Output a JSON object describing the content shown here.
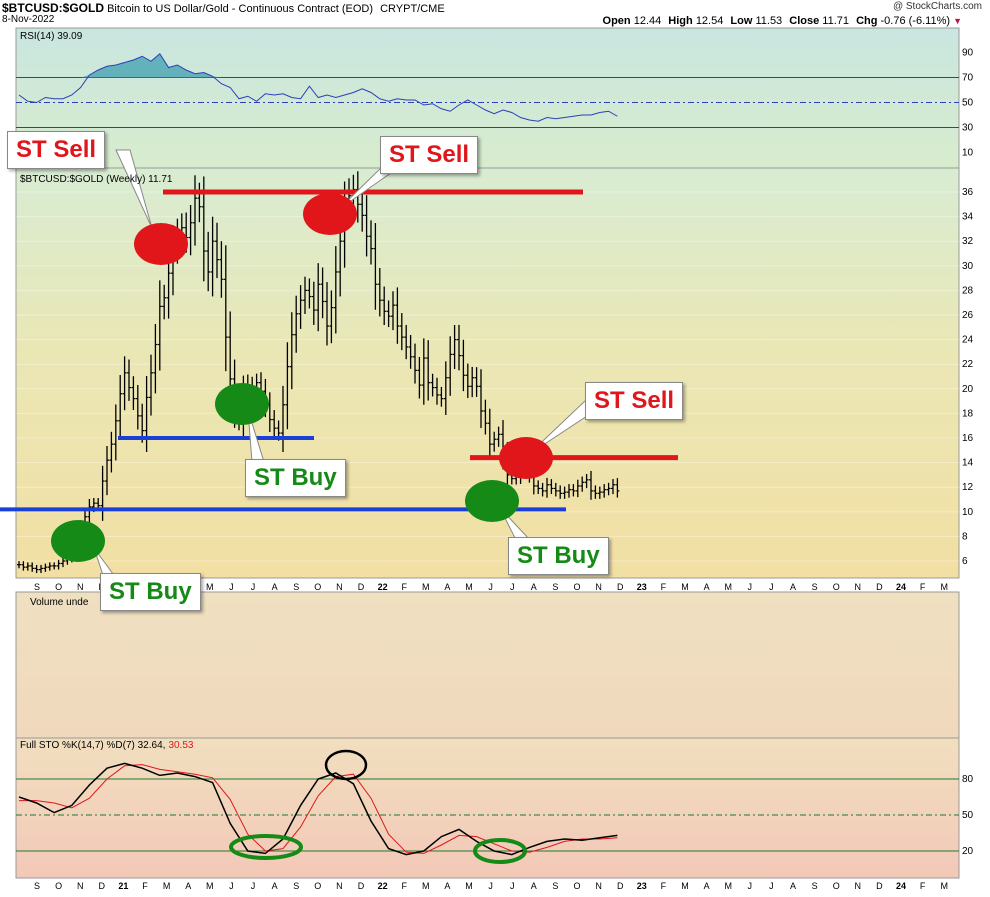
{
  "header": {
    "symbol": "$BTCUSD:$GOLD",
    "description": "Bitcoin to US Dollar/Gold - Continuous Contract (EOD)",
    "exchange": "CRYPT/CME",
    "date": "8-Nov-2022",
    "watermark": "@ StockCharts.com",
    "ohlc": {
      "open_label": "Open",
      "open": "12.44",
      "high_label": "High",
      "high": "12.54",
      "low_label": "Low",
      "low": "11.53",
      "close_label": "Close",
      "close": "11.71",
      "chg_label": "Chg",
      "chg": "-0.76 (-6.11%)"
    }
  },
  "colors": {
    "sell": "#e0161b",
    "buy": "#158a16",
    "support": "#1a3fd6",
    "resistance": "#e0161b",
    "price": "#000000",
    "rsi": "#2b3fb8",
    "sto_k": "#000000",
    "sto_d": "#e0161b"
  },
  "chart_data": [
    {
      "type": "line",
      "panel": "rsi",
      "label": "RSI(14) 39.09",
      "y_ticks": [
        "90",
        "70",
        "50",
        "30",
        "10"
      ],
      "ylim": [
        0,
        100
      ],
      "reference_lines": [
        70,
        50,
        30
      ],
      "x": [
        0,
        2,
        4,
        6,
        8,
        10,
        12,
        14,
        16,
        18,
        20,
        22,
        24,
        26,
        28,
        30,
        32,
        34,
        36,
        38,
        40,
        42,
        44,
        46,
        48,
        50,
        52,
        54,
        56,
        58,
        60,
        62,
        64,
        66,
        68,
        70,
        72,
        74,
        76,
        78,
        80,
        82,
        84,
        86,
        88,
        90,
        92,
        94,
        96,
        98,
        100,
        102,
        104,
        106,
        108,
        110,
        112,
        114,
        116,
        118,
        120,
        122,
        124,
        126,
        128,
        130,
        132,
        134,
        136
      ],
      "values": [
        56,
        51,
        50,
        54,
        53,
        53,
        56,
        62,
        72,
        76,
        79,
        80,
        82,
        84,
        87,
        83,
        89,
        78,
        80,
        76,
        73,
        74,
        71,
        65,
        62,
        53,
        55,
        51,
        57,
        56,
        57,
        54,
        53,
        63,
        54,
        56,
        54,
        56,
        58,
        61,
        58,
        53,
        51,
        53,
        52,
        52,
        48,
        49,
        45,
        43,
        48,
        52,
        48,
        44,
        41,
        44,
        42,
        38,
        36,
        35,
        38,
        37,
        38,
        39,
        40,
        40,
        42,
        43,
        39
      ]
    },
    {
      "type": "candlestick",
      "panel": "price",
      "label": "$BTCUSD:$GOLD (Weekly) 11.71",
      "y_ticks": [
        "36",
        "34",
        "32",
        "30",
        "28",
        "26",
        "24",
        "22",
        "20",
        "18",
        "16",
        "14",
        "12",
        "10",
        "8",
        "6"
      ],
      "ylim": [
        5,
        38
      ],
      "x_ticks": [
        "S",
        "O",
        "N",
        "D",
        "21",
        "F",
        "M",
        "A",
        "M",
        "J",
        "J",
        "A",
        "S",
        "O",
        "N",
        "D",
        "22",
        "F",
        "M",
        "A",
        "M",
        "J",
        "J",
        "A",
        "S",
        "O",
        "N",
        "D",
        "23",
        "F",
        "M",
        "A",
        "M",
        "J",
        "J",
        "A",
        "S",
        "O",
        "N",
        "D",
        "24",
        "F",
        "M"
      ],
      "x": [
        0,
        1,
        2,
        3,
        4,
        5,
        6,
        7,
        8,
        9,
        10,
        11,
        12,
        13,
        14,
        15,
        16,
        17,
        18,
        19,
        20,
        21,
        22,
        23,
        24,
        25,
        26,
        27,
        28,
        29,
        30,
        31,
        32,
        33,
        34,
        35,
        36,
        37,
        38,
        39,
        40,
        41,
        42,
        43,
        44,
        45,
        46,
        47,
        48,
        49,
        50,
        51,
        52,
        53,
        54,
        55,
        56,
        57,
        58,
        59,
        60,
        61,
        62,
        63,
        64,
        65,
        66,
        67,
        68,
        69,
        70,
        71,
        72,
        73,
        74,
        75,
        76,
        77,
        78,
        79,
        80,
        81,
        82,
        83,
        84,
        85,
        86,
        87,
        88,
        89,
        90,
        91,
        92,
        93,
        94,
        95,
        96,
        97,
        98,
        99,
        100,
        101,
        102,
        103,
        104,
        105,
        106,
        107,
        108,
        109,
        110,
        111,
        112,
        113,
        114,
        115,
        116,
        117,
        118,
        119,
        120,
        121,
        122,
        123,
        124,
        125,
        126,
        127,
        128,
        129,
        130,
        131,
        132,
        133,
        134,
        135,
        136
      ],
      "close": [
        5.7,
        5.5,
        5.6,
        5.4,
        5.3,
        5.4,
        5.5,
        5.6,
        5.6,
        5.8,
        6,
        6.2,
        6.5,
        7.2,
        8.5,
        9.6,
        10.4,
        10.7,
        10.5,
        12.5,
        14.2,
        15.5,
        17.4,
        19.6,
        21.3,
        20.1,
        19.2,
        17.8,
        16.6,
        19.3,
        21.3,
        23.6,
        26.7,
        27.4,
        29.4,
        31.5,
        32.5,
        33.1,
        32.3,
        33.5,
        35.5,
        34.8,
        31.2,
        29.5,
        32,
        30.5,
        28.9,
        24.2,
        20.8,
        18.4,
        17.5,
        19.6,
        20.3,
        20.1,
        20.5,
        19.8,
        18.7,
        17.5,
        16.8,
        16.4,
        18.7,
        21.8,
        24.4,
        26.1,
        27.2,
        28,
        27.5,
        26.4,
        28.5,
        27.1,
        25.1,
        26.6,
        29.5,
        32,
        34.7,
        35.7,
        36.2,
        35,
        34.1,
        32.4,
        31.4,
        28.5,
        27.2,
        26.3,
        25.9,
        26.8,
        25.1,
        24.2,
        23.4,
        22.6,
        21.5,
        20.3,
        22.5,
        20.5,
        20.1,
        19.5,
        19.2,
        20.9,
        22.8,
        24,
        22.7,
        21.1,
        20.2,
        20.9,
        20.2,
        18.2,
        17.2,
        15.5,
        15.9,
        16.3,
        14.6,
        13,
        12.7,
        12.9,
        13.5,
        13.3,
        12.9,
        12.1,
        11.9,
        11.7,
        12.2,
        11.9,
        11.7,
        11.5,
        11.6,
        11.8,
        11.7,
        12.1,
        12.4,
        12.6,
        11.7,
        11.5,
        11.6,
        11.8,
        11.9,
        12.2,
        11.7
      ],
      "support_lines": [
        {
          "level": 16,
          "from": "D",
          "to": "S"
        },
        {
          "level": 10.2,
          "from": "S",
          "to": "J"
        }
      ],
      "resistance_lines": [
        {
          "level": 36,
          "from": "M",
          "to": "J"
        },
        {
          "level": 14.4,
          "from": "M",
          "to": "N"
        }
      ],
      "annotations": [
        {
          "label": "ST Sell",
          "kind": "sell"
        },
        {
          "label": "ST Sell",
          "kind": "sell"
        },
        {
          "label": "ST Sell",
          "kind": "sell"
        },
        {
          "label": "ST Buy",
          "kind": "buy"
        },
        {
          "label": "ST Buy",
          "kind": "buy"
        },
        {
          "label": "ST Buy",
          "kind": "buy"
        }
      ]
    },
    {
      "type": "bar",
      "panel": "volume",
      "label": "Volume unde"
    },
    {
      "type": "line",
      "panel": "stochastic",
      "label_prefix": "Full STO %K(14,7) %D(7) 32.64,",
      "label_d": "30.53",
      "y_ticks": [
        "80",
        "50",
        "20"
      ],
      "ylim": [
        0,
        100
      ],
      "reference_lines": [
        80,
        50,
        20
      ],
      "x_ticks": [
        "S",
        "O",
        "N",
        "D",
        "21",
        "F",
        "M",
        "A",
        "M",
        "J",
        "J",
        "A",
        "S",
        "O",
        "N",
        "D",
        "22",
        "F",
        "M",
        "A",
        "M",
        "J",
        "J",
        "A",
        "S",
        "O",
        "N",
        "D",
        "23",
        "F",
        "M",
        "A",
        "M",
        "J",
        "J",
        "A",
        "S",
        "O",
        "N",
        "D",
        "24",
        "F",
        "M"
      ],
      "series": [
        {
          "key": "K",
          "x": [
            0,
            4,
            8,
            12,
            16,
            20,
            24,
            28,
            32,
            36,
            40,
            44,
            48,
            52,
            56,
            60,
            64,
            68,
            72,
            76,
            80,
            84,
            88,
            92,
            96,
            100,
            104,
            108,
            112,
            116,
            120,
            124,
            128,
            132,
            136
          ],
          "values": [
            65,
            60,
            52,
            58,
            75,
            89,
            93,
            89,
            83,
            85,
            82,
            77,
            43,
            20,
            18,
            30,
            58,
            80,
            85,
            76,
            45,
            22,
            17,
            20,
            32,
            38,
            28,
            20,
            17,
            23,
            28,
            30,
            29,
            31,
            33
          ]
        },
        {
          "key": "D",
          "x": [
            0,
            4,
            8,
            12,
            16,
            20,
            24,
            28,
            32,
            36,
            40,
            44,
            48,
            52,
            56,
            60,
            64,
            68,
            72,
            76,
            80,
            84,
            88,
            92,
            96,
            100,
            104,
            108,
            112,
            116,
            120,
            124,
            128,
            132,
            136
          ],
          "values": [
            62,
            62,
            60,
            56,
            64,
            80,
            91,
            92,
            88,
            86,
            84,
            81,
            63,
            34,
            20,
            22,
            40,
            66,
            82,
            84,
            64,
            34,
            19,
            18,
            25,
            33,
            32,
            26,
            20,
            19,
            23,
            28,
            30,
            30,
            31
          ]
        }
      ]
    }
  ]
}
